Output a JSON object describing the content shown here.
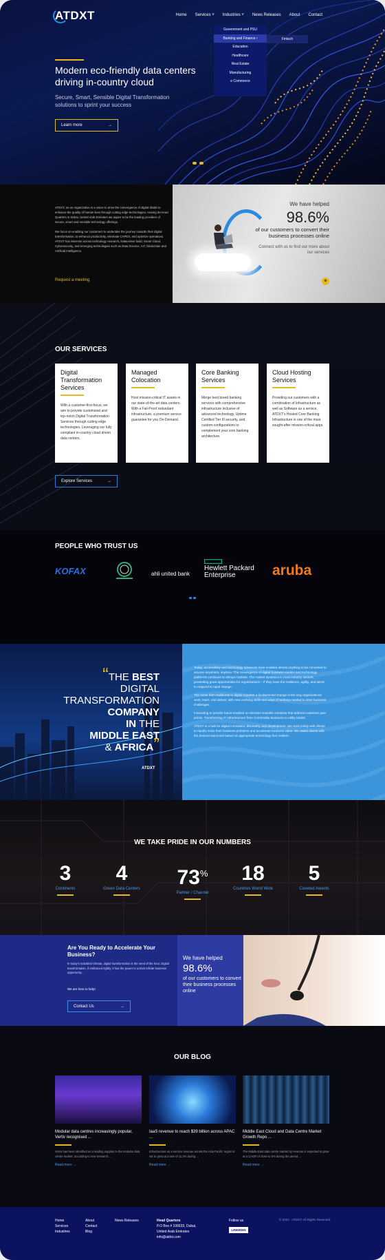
{
  "header": {
    "logo": "ATDXT",
    "nav": [
      "Home",
      "Services",
      "Industries",
      "News Releases",
      "About",
      "Contact"
    ],
    "dropdown": [
      "Government and PSU",
      "Banking and Finance",
      "Education",
      "Healthcare",
      "Real Estate",
      "Manufacturing",
      "e Commerce"
    ],
    "subdropdown": "Fintech"
  },
  "hero": {
    "title": "Modern eco-friendly data centers driving in-country cloud",
    "subtitle": "Secure, Smart, Sensible Digital Transformation solutions to sprint your success",
    "cta": "Learn more",
    "arrow": "→"
  },
  "about": {
    "p1": "ATDXT, as an organization is a vision to drive the convergence of digital divide to enhance the quality of human lives through cutting edge technologies. Having its Head Quarters in Dubai, United Arab Emirates we aspire to be the leading providers of secure, smart and sensible technology offerings.",
    "p2": "We focus on enabling our customers to undertake the journey towards their digital transformation, to enhance productivity, eliminate CAPEX, and optimize operations. ATDXT has interests across technology research, Datacenter build, Smart Cloud, Cybersecurity, and emerging technologies such as Data Science, IoT, blockchain and Artificial Intelligence.",
    "link": "Request a meeting",
    "helped_a": "We have helped",
    "helped_pct": "98.6%",
    "helped_c": "of our customers to convert their business processes online",
    "helped_d": "Connect with us to find out more about our services",
    "btn_icon": "⊕"
  },
  "services": {
    "title": "OUR SERVICES",
    "cards": [
      {
        "title": "Digital Transformation Services",
        "desc": "With a customer-first-focus, we aim to provide customized and top-notch Digital Transformation Services through cutting edge technologies. Leveraging our fully compliant in-country cloud driven data centers."
      },
      {
        "title": "Managed Colocation",
        "desc": "Host mission-critical IT assets in our state-of-the-art data centers. With a Fail-Proof redundant infrastructure, a premium service guarantee for you On-Demand."
      },
      {
        "title": "Core Banking Services",
        "desc": "Merge best breed banking services with comprehensive infrastructure inclusive of advanced technology, Uptime Certified Tier III security, and custom-configurations to complement your core banking architecture."
      },
      {
        "title": "Cloud Hosting Services",
        "desc": "Providing our customers with a combination of Infrastructure as well as Software as a service, ATDXT's Hosted Core Banking Infrastructure is one of the most sought-after mission-critical apps."
      }
    ],
    "cta": "Explore Services"
  },
  "trust": {
    "title": "PEOPLE WHO TRUST US",
    "logos": [
      "KOFAX",
      "ahli united bank",
      "Hewlett Packard Enterprise",
      "aruba"
    ]
  },
  "best": {
    "l1": "THE ",
    "l1b": "BEST",
    "l2": "DIGITAL",
    "l3": "TRANSFORMATION",
    "l4": "COMPANY",
    "l5": "IN",
    "l5b": " THE",
    "l6": "MIDDLE EAST",
    "l7": "& ",
    "l7b": "AFRICA",
    "brand": "ATDXT",
    "p1": "Today, accessibility and technology advances have enabled almost anything to be converted to anyone anywhere, anytime. The convergence of digital business models and technology platforms continues to disrupt markets. The market dynamics in most industry sectors, presenting great opportunities for organizations – if they have the resilience, agility, and talent to respond to rapid change.",
    "p2": "The move from traditional to digital requires a fundamental change in the way organizations work, learn, and deliver, with new evolving skills and ways of working needed to drive business challenges.",
    "p3": "Innovating to provide future enabled on-demand scalable solutions that address customer pain points. Transforming IT Infrastructure from Commodity Business to Utility Model.",
    "p4": "ATDXT is a hub for digital innovation, discovery, and development. We work jointly with clients to rapidly solve their business problems and accelerate business value. We assist clients with the desired outcomes based on appropriate technology that matters."
  },
  "numbers": {
    "title": "WE TAKE PRIDE IN OUR NUMBERS",
    "items": [
      {
        "value": "3",
        "sup": "",
        "label": "Continents"
      },
      {
        "value": "4",
        "sup": "",
        "label": "Green Data Centers"
      },
      {
        "value": "73",
        "sup": "%",
        "label": "Partner / Channel"
      },
      {
        "value": "18",
        "sup": "",
        "label": "Countries World Wide"
      },
      {
        "value": "5",
        "sup": "",
        "label": "Coveted Awards"
      }
    ]
  },
  "ready": {
    "title": "Are You Ready to Accelerate Your Business?",
    "p": "In today's industrial climate, digital transformation is the need of the hour. Digital transformation, if embraced rightly. It has the power to unlock infinite business opportunity.",
    "small": "We are here to help!",
    "cta": "Contact Us",
    "helped_a": "We have helped",
    "helped_pct": "98.6%",
    "helped_c": "of our customers to convert their business processes online"
  },
  "blog": {
    "title": "OUR BLOG",
    "posts": [
      {
        "title": "Modular data centres increasingly popular, Vertiv recognised ...",
        "desc": "Vertiv has been identified as a leading supplier in the modular data centre market, according to new research ...",
        "more": "Read more"
      },
      {
        "title": "IaaS revenue to reach $39 billion across APAC ...",
        "desc": "Infrastructure as a service revenue across the Asia Pacific region is set to grow at a rate of 11.2% during ...",
        "more": "Read more"
      },
      {
        "title": "Middle East Cloud and Data Centre Market Growth Repo ...",
        "desc": "The Middle East data centre market by revenue is expected to grow at a CAGR of close to 5% during the period ...",
        "more": "Read more"
      }
    ]
  },
  "footer": {
    "col1": [
      "Home",
      "Services",
      "Industries"
    ],
    "col2": [
      "About",
      "Contact",
      "Blog"
    ],
    "col3": [
      "News Releases"
    ],
    "hq_title": "Head Quarters",
    "hq": [
      "P.O Box # 106633, Dubai,",
      "United Arab Emirates",
      "info@atdxt.com"
    ],
    "follow": "Follow us",
    "linkedin": "LINKEDIN",
    "copyright": "© 2021 - ATDXT. All Rights Reserved."
  }
}
